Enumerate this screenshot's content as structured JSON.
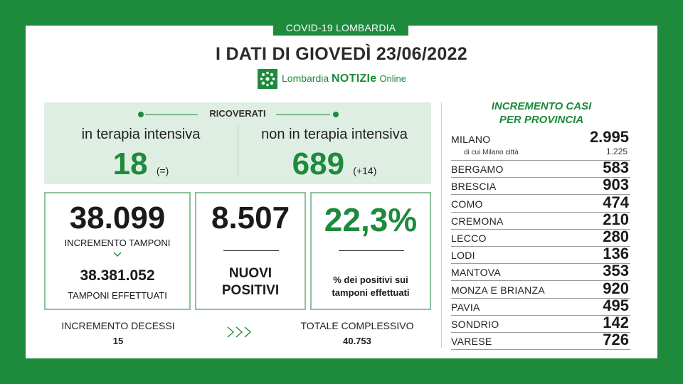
{
  "header": {
    "tag": "COVID-19 LOMBARDIA",
    "title": "I DATI DI GIOVEDÌ 23/06/2022",
    "brand_prefix": "Lombardia",
    "brand_main": "NOTIZIe",
    "brand_suffix": "Online"
  },
  "ricoverati": {
    "heading": "RICOVERATI",
    "intensive_label": "in terapia intensiva",
    "intensive_value": "18",
    "intensive_change": "(=)",
    "non_intensive_label": "non in terapia intensiva",
    "non_intensive_value": "689",
    "non_intensive_change": "(+14)"
  },
  "tamponi": {
    "increment_value": "38.099",
    "increment_label": "INCREMENTO TAMPONI",
    "total_value": "38.381.052",
    "total_label": "TAMPONI EFFETTUATI"
  },
  "positivi": {
    "value": "8.507",
    "label_line1": "NUOVI",
    "label_line2": "POSITIVI"
  },
  "percentuale": {
    "value": "22,3%",
    "label_line1": "% dei positivi sui",
    "label_line2": "tamponi effettuati"
  },
  "decessi": {
    "label": "INCREMENTO DECESSI",
    "value": "15",
    "total_label": "TOTALE COMPLESSIVO",
    "total_value": "40.753"
  },
  "province": {
    "heading_line1": "INCREMENTO CASI",
    "heading_line2": "PER PROVINCIA",
    "milano": {
      "name": "MILANO",
      "value": "2.995",
      "city_label": "di cui Milano città",
      "city_value": "1.225"
    },
    "items": [
      {
        "name": "BERGAMO",
        "value": "583"
      },
      {
        "name": "BRESCIA",
        "value": "903"
      },
      {
        "name": "COMO",
        "value": "474"
      },
      {
        "name": "CREMONA",
        "value": "210"
      },
      {
        "name": "LECCO",
        "value": "280"
      },
      {
        "name": "LODI",
        "value": "136"
      },
      {
        "name": "MANTOVA",
        "value": "353"
      },
      {
        "name": "MONZA E BRIANZA",
        "value": "920"
      },
      {
        "name": "PAVIA",
        "value": "495"
      },
      {
        "name": "SONDRIO",
        "value": "142"
      },
      {
        "name": "VARESE",
        "value": "726"
      }
    ]
  },
  "colors": {
    "brand_green": "#1e8a3c",
    "panel_green": "#dfeee3",
    "box_border": "#8cc19b"
  }
}
